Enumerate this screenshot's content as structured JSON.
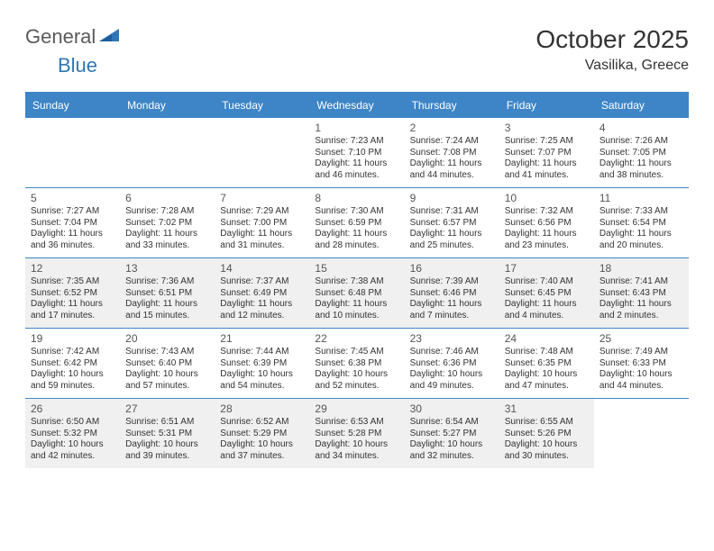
{
  "logo": {
    "general": "General",
    "blue": "Blue"
  },
  "title": "October 2025",
  "location": "Vasilika, Greece",
  "colors": {
    "header_bar": "#3d85c6",
    "shade_bg": "#f0f0f0",
    "text": "#333333",
    "logo_gray": "#5a5a5a",
    "logo_blue": "#2f77b6",
    "background": "#ffffff"
  },
  "typography": {
    "title_fontsize": 28,
    "location_fontsize": 16,
    "dow_fontsize": 12,
    "daynum_fontsize": 12,
    "detail_fontsize": 10
  },
  "daysOfWeek": [
    "Sunday",
    "Monday",
    "Tuesday",
    "Wednesday",
    "Thursday",
    "Friday",
    "Saturday"
  ],
  "weeks": [
    {
      "shaded": false,
      "days": [
        null,
        null,
        null,
        {
          "n": "1",
          "sr": "7:23 AM",
          "ss": "7:10 PM",
          "dl": "11 hours and 46 minutes."
        },
        {
          "n": "2",
          "sr": "7:24 AM",
          "ss": "7:08 PM",
          "dl": "11 hours and 44 minutes."
        },
        {
          "n": "3",
          "sr": "7:25 AM",
          "ss": "7:07 PM",
          "dl": "11 hours and 41 minutes."
        },
        {
          "n": "4",
          "sr": "7:26 AM",
          "ss": "7:05 PM",
          "dl": "11 hours and 38 minutes."
        }
      ]
    },
    {
      "shaded": false,
      "days": [
        {
          "n": "5",
          "sr": "7:27 AM",
          "ss": "7:04 PM",
          "dl": "11 hours and 36 minutes."
        },
        {
          "n": "6",
          "sr": "7:28 AM",
          "ss": "7:02 PM",
          "dl": "11 hours and 33 minutes."
        },
        {
          "n": "7",
          "sr": "7:29 AM",
          "ss": "7:00 PM",
          "dl": "11 hours and 31 minutes."
        },
        {
          "n": "8",
          "sr": "7:30 AM",
          "ss": "6:59 PM",
          "dl": "11 hours and 28 minutes."
        },
        {
          "n": "9",
          "sr": "7:31 AM",
          "ss": "6:57 PM",
          "dl": "11 hours and 25 minutes."
        },
        {
          "n": "10",
          "sr": "7:32 AM",
          "ss": "6:56 PM",
          "dl": "11 hours and 23 minutes."
        },
        {
          "n": "11",
          "sr": "7:33 AM",
          "ss": "6:54 PM",
          "dl": "11 hours and 20 minutes."
        }
      ]
    },
    {
      "shaded": true,
      "days": [
        {
          "n": "12",
          "sr": "7:35 AM",
          "ss": "6:52 PM",
          "dl": "11 hours and 17 minutes."
        },
        {
          "n": "13",
          "sr": "7:36 AM",
          "ss": "6:51 PM",
          "dl": "11 hours and 15 minutes."
        },
        {
          "n": "14",
          "sr": "7:37 AM",
          "ss": "6:49 PM",
          "dl": "11 hours and 12 minutes."
        },
        {
          "n": "15",
          "sr": "7:38 AM",
          "ss": "6:48 PM",
          "dl": "11 hours and 10 minutes."
        },
        {
          "n": "16",
          "sr": "7:39 AM",
          "ss": "6:46 PM",
          "dl": "11 hours and 7 minutes."
        },
        {
          "n": "17",
          "sr": "7:40 AM",
          "ss": "6:45 PM",
          "dl": "11 hours and 4 minutes."
        },
        {
          "n": "18",
          "sr": "7:41 AM",
          "ss": "6:43 PM",
          "dl": "11 hours and 2 minutes."
        }
      ]
    },
    {
      "shaded": false,
      "days": [
        {
          "n": "19",
          "sr": "7:42 AM",
          "ss": "6:42 PM",
          "dl": "10 hours and 59 minutes."
        },
        {
          "n": "20",
          "sr": "7:43 AM",
          "ss": "6:40 PM",
          "dl": "10 hours and 57 minutes."
        },
        {
          "n": "21",
          "sr": "7:44 AM",
          "ss": "6:39 PM",
          "dl": "10 hours and 54 minutes."
        },
        {
          "n": "22",
          "sr": "7:45 AM",
          "ss": "6:38 PM",
          "dl": "10 hours and 52 minutes."
        },
        {
          "n": "23",
          "sr": "7:46 AM",
          "ss": "6:36 PM",
          "dl": "10 hours and 49 minutes."
        },
        {
          "n": "24",
          "sr": "7:48 AM",
          "ss": "6:35 PM",
          "dl": "10 hours and 47 minutes."
        },
        {
          "n": "25",
          "sr": "7:49 AM",
          "ss": "6:33 PM",
          "dl": "10 hours and 44 minutes."
        }
      ]
    },
    {
      "shaded": true,
      "days": [
        {
          "n": "26",
          "sr": "6:50 AM",
          "ss": "5:32 PM",
          "dl": "10 hours and 42 minutes."
        },
        {
          "n": "27",
          "sr": "6:51 AM",
          "ss": "5:31 PM",
          "dl": "10 hours and 39 minutes."
        },
        {
          "n": "28",
          "sr": "6:52 AM",
          "ss": "5:29 PM",
          "dl": "10 hours and 37 minutes."
        },
        {
          "n": "29",
          "sr": "6:53 AM",
          "ss": "5:28 PM",
          "dl": "10 hours and 34 minutes."
        },
        {
          "n": "30",
          "sr": "6:54 AM",
          "ss": "5:27 PM",
          "dl": "10 hours and 32 minutes."
        },
        {
          "n": "31",
          "sr": "6:55 AM",
          "ss": "5:26 PM",
          "dl": "10 hours and 30 minutes."
        },
        null
      ]
    }
  ]
}
